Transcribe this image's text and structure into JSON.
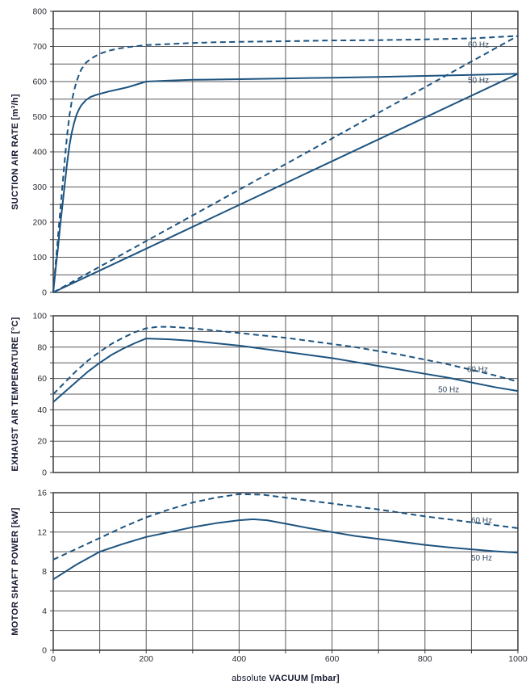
{
  "style": {
    "background": "#ffffff",
    "curve_color": "#1d5480",
    "grid_color": "#59595c",
    "border_color": "#3a3a3e",
    "tick_label_color": "#2b2b33",
    "axis_title_color": "#14182e",
    "legend_color": "#35495e"
  },
  "x_axis": {
    "title_prefix": "absolute",
    "title_main": "VACUUM",
    "title_unit": "[mbar]",
    "min": 0,
    "max": 1000,
    "grid_step": 100,
    "ticks": [
      0,
      200,
      400,
      600,
      800,
      1000
    ]
  },
  "chart_data": [
    {
      "id": "suction-air-rate",
      "type": "line",
      "title": "",
      "xlabel": "absolute VACUUM [mbar]",
      "ylabel": "SUCTION AIR RATE [m³/h]",
      "xlim": [
        0,
        1000
      ],
      "ylim": [
        0,
        800
      ],
      "x_grid_step": 100,
      "y_grid_step": 50,
      "y_ticks": [
        0,
        100,
        200,
        300,
        400,
        500,
        600,
        700,
        800
      ],
      "grid": true,
      "x_tick_stubs": false,
      "legend_position": "inside-right",
      "series": [
        {
          "name": "60 Hz",
          "style": "dashed",
          "points": [
            [
              0,
              0
            ],
            [
              5,
              80
            ],
            [
              10,
              155
            ],
            [
              15,
              230
            ],
            [
              20,
              305
            ],
            [
              25,
              380
            ],
            [
              30,
              450
            ],
            [
              35,
              505
            ],
            [
              40,
              545
            ],
            [
              45,
              575
            ],
            [
              50,
              600
            ],
            [
              55,
              618
            ],
            [
              60,
              634
            ],
            [
              70,
              653
            ],
            [
              80,
              664
            ],
            [
              90,
              672
            ],
            [
              100,
              679
            ],
            [
              120,
              688
            ],
            [
              140,
              694
            ],
            [
              160,
              698
            ],
            [
              180,
              701
            ],
            [
              200,
              704
            ],
            [
              250,
              707
            ],
            [
              300,
              710
            ],
            [
              350,
              712
            ],
            [
              400,
              713
            ],
            [
              500,
              715
            ],
            [
              600,
              717
            ],
            [
              700,
              718
            ],
            [
              800,
              720
            ],
            [
              900,
              723
            ],
            [
              1000,
              730
            ]
          ]
        },
        {
          "name": "50 Hz",
          "style": "solid",
          "points": [
            [
              0,
              0
            ],
            [
              5,
              65
            ],
            [
              10,
              125
            ],
            [
              15,
              190
            ],
            [
              20,
              250
            ],
            [
              25,
              310
            ],
            [
              30,
              370
            ],
            [
              35,
              420
            ],
            [
              40,
              455
            ],
            [
              45,
              483
            ],
            [
              50,
              505
            ],
            [
              55,
              520
            ],
            [
              60,
              532
            ],
            [
              70,
              547
            ],
            [
              80,
              556
            ],
            [
              90,
              561
            ],
            [
              100,
              565
            ],
            [
              120,
              572
            ],
            [
              140,
              578
            ],
            [
              160,
              584
            ],
            [
              180,
              592
            ],
            [
              200,
              600
            ],
            [
              250,
              603
            ],
            [
              300,
              605
            ],
            [
              400,
              607
            ],
            [
              500,
              609
            ],
            [
              600,
              611
            ],
            [
              700,
              613
            ],
            [
              800,
              616
            ],
            [
              900,
              619
            ],
            [
              1000,
              622
            ]
          ]
        },
        {
          "name": "60 Hz linear intake",
          "style": "dashed",
          "points": [
            [
              0,
              0
            ],
            [
              1000,
              730
            ]
          ]
        },
        {
          "name": "50 Hz linear intake",
          "style": "solid",
          "points": [
            [
              0,
              0
            ],
            [
              1000,
              622
            ]
          ]
        }
      ],
      "annotations": [
        {
          "text": "60 Hz",
          "x": 915,
          "y": 706
        },
        {
          "text": "50 Hz",
          "x": 915,
          "y": 605
        }
      ]
    },
    {
      "id": "exhaust-air-temperature",
      "type": "line",
      "title": "",
      "xlabel": "absolute VACUUM [mbar]",
      "ylabel": "EXHAUST AIR TEMPERATURE [°C]",
      "xlim": [
        0,
        1000
      ],
      "ylim": [
        0,
        100
      ],
      "x_grid_step": 100,
      "y_grid_step": 10,
      "y_ticks": [
        0,
        20,
        40,
        60,
        80,
        100
      ],
      "grid": true,
      "x_tick_stubs": false,
      "legend_position": "inside-right",
      "series": [
        {
          "name": "60 Hz",
          "style": "dashed",
          "points": [
            [
              0,
              50
            ],
            [
              25,
              57.5
            ],
            [
              50,
              65
            ],
            [
              75,
              71.5
            ],
            [
              100,
              77
            ],
            [
              125,
              82
            ],
            [
              150,
              86
            ],
            [
              175,
              89.5
            ],
            [
              200,
              92
            ],
            [
              225,
              93
            ],
            [
              250,
              93
            ],
            [
              300,
              92
            ],
            [
              350,
              90.5
            ],
            [
              400,
              89
            ],
            [
              450,
              87.5
            ],
            [
              500,
              86
            ],
            [
              550,
              84
            ],
            [
              600,
              82
            ],
            [
              650,
              80
            ],
            [
              700,
              77.5
            ],
            [
              750,
              75
            ],
            [
              800,
              72
            ],
            [
              850,
              69
            ],
            [
              900,
              65.5
            ],
            [
              950,
              62
            ],
            [
              1000,
              58
            ]
          ]
        },
        {
          "name": "50 Hz",
          "style": "solid",
          "points": [
            [
              0,
              45
            ],
            [
              25,
              51.5
            ],
            [
              50,
              58
            ],
            [
              75,
              64.5
            ],
            [
              100,
              70
            ],
            [
              125,
              75
            ],
            [
              150,
              79
            ],
            [
              175,
              82.5
            ],
            [
              200,
              85.5
            ],
            [
              250,
              85
            ],
            [
              300,
              84
            ],
            [
              350,
              82.5
            ],
            [
              400,
              81
            ],
            [
              450,
              79
            ],
            [
              500,
              77
            ],
            [
              550,
              75
            ],
            [
              600,
              73
            ],
            [
              650,
              70.5
            ],
            [
              700,
              68
            ],
            [
              750,
              65.5
            ],
            [
              800,
              63
            ],
            [
              850,
              60.5
            ],
            [
              900,
              57.5
            ],
            [
              950,
              54.5
            ],
            [
              1000,
              52
            ]
          ]
        }
      ],
      "annotations": [
        {
          "text": "60 Hz",
          "x": 913,
          "y": 66
        },
        {
          "text": "50 Hz",
          "x": 851,
          "y": 53
        }
      ]
    },
    {
      "id": "motor-shaft-power",
      "type": "line",
      "title": "",
      "xlabel": "absolute VACUUM [mbar]",
      "ylabel": "MOTOR SHAFT POWER [kW]",
      "xlim": [
        0,
        1000
      ],
      "ylim": [
        0,
        16
      ],
      "x_grid_step": 100,
      "y_grid_step": 2,
      "y_ticks": [
        0,
        4,
        8,
        12,
        16
      ],
      "grid": true,
      "x_tick_stubs": true,
      "legend_position": "inside-right",
      "series": [
        {
          "name": "60 Hz",
          "style": "dashed",
          "points": [
            [
              0,
              9.2
            ],
            [
              50,
              10.3
            ],
            [
              100,
              11.4
            ],
            [
              150,
              12.5
            ],
            [
              200,
              13.5
            ],
            [
              250,
              14.3
            ],
            [
              300,
              15.0
            ],
            [
              350,
              15.5
            ],
            [
              400,
              15.85
            ],
            [
              450,
              15.8
            ],
            [
              500,
              15.5
            ],
            [
              550,
              15.2
            ],
            [
              600,
              14.9
            ],
            [
              650,
              14.6
            ],
            [
              700,
              14.3
            ],
            [
              750,
              13.95
            ],
            [
              800,
              13.6
            ],
            [
              850,
              13.3
            ],
            [
              900,
              13.0
            ],
            [
              950,
              12.7
            ],
            [
              1000,
              12.4
            ]
          ]
        },
        {
          "name": "50 Hz",
          "style": "solid",
          "points": [
            [
              0,
              7.2
            ],
            [
              50,
              8.7
            ],
            [
              100,
              10.0
            ],
            [
              150,
              10.8
            ],
            [
              200,
              11.5
            ],
            [
              250,
              12.0
            ],
            [
              300,
              12.5
            ],
            [
              350,
              12.9
            ],
            [
              400,
              13.2
            ],
            [
              430,
              13.3
            ],
            [
              460,
              13.2
            ],
            [
              500,
              12.85
            ],
            [
              550,
              12.4
            ],
            [
              600,
              12.0
            ],
            [
              650,
              11.6
            ],
            [
              700,
              11.3
            ],
            [
              750,
              11.0
            ],
            [
              800,
              10.7
            ],
            [
              850,
              10.45
            ],
            [
              900,
              10.25
            ],
            [
              950,
              10.05
            ],
            [
              1000,
              9.9
            ]
          ]
        }
      ],
      "annotations": [
        {
          "text": "60 Hz",
          "x": 922,
          "y": 13.2
        },
        {
          "text": "50 Hz",
          "x": 922,
          "y": 9.4
        }
      ]
    }
  ]
}
